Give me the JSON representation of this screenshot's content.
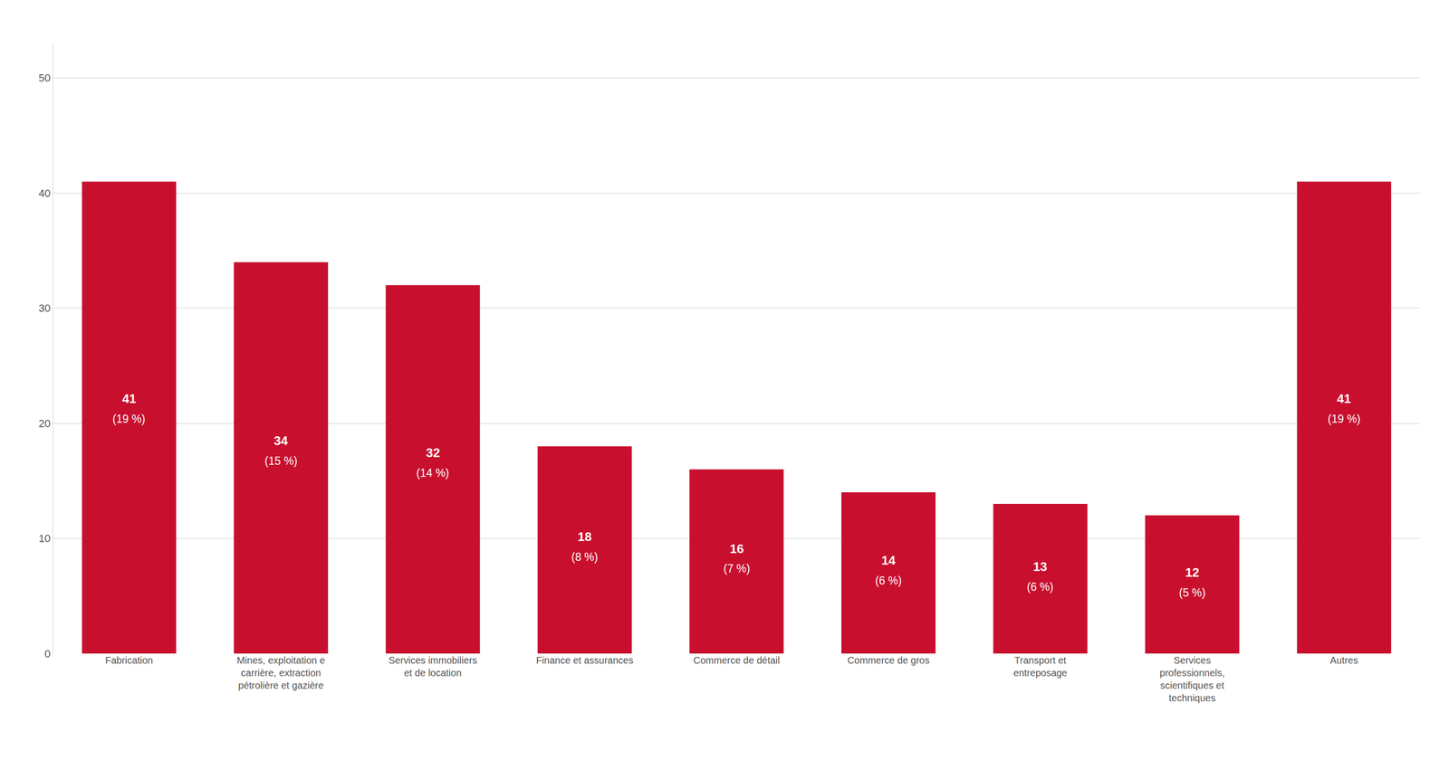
{
  "chart_data": {
    "type": "bar",
    "categories": [
      "Fabrication",
      "Mines, exploitation e\ncarrière, extraction\npétrolière et gazière",
      "Services immobiliers\net de location",
      "Finance et assurances",
      "Commerce de détail",
      "Commerce de gros",
      "Transport et\nentreposage",
      "Services\nprofessionnels,\nscientifiques et\ntechniques",
      "Autres"
    ],
    "values": [
      41,
      34,
      32,
      18,
      16,
      14,
      13,
      12,
      41
    ],
    "percentage_labels": [
      "(19 %)",
      "(15 %)",
      "(14 %)",
      "(8 %)",
      "(7 %)",
      "(6 %)",
      "(6 %)",
      "(5 %)",
      "(19 %)"
    ],
    "color": "#c8102e",
    "ylim": [
      0,
      53
    ],
    "yticks": [
      0,
      10,
      20,
      30,
      40,
      50
    ],
    "grid": true,
    "data_labels": true
  }
}
